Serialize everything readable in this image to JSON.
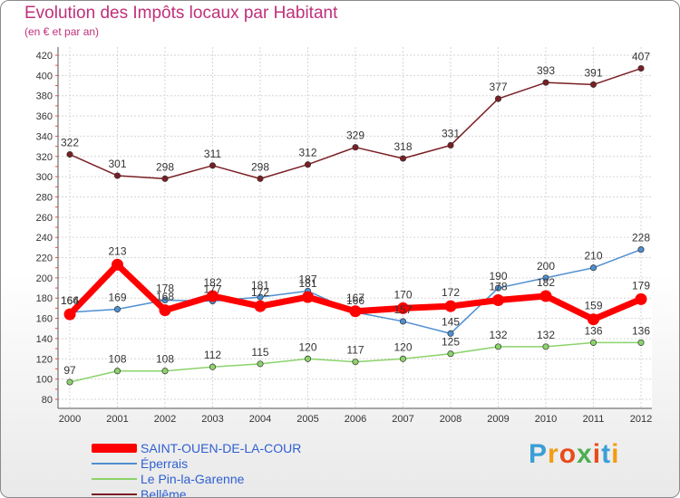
{
  "chart_data": {
    "type": "line",
    "title": "Evolution des Impôts locaux par Habitant",
    "subtitle": "(en € et par an)",
    "x": [
      "2000",
      "2001",
      "2002",
      "2003",
      "2004",
      "2005",
      "2006",
      "2007",
      "2008",
      "2009",
      "2010",
      "2011",
      "2012"
    ],
    "yticks": [
      80,
      100,
      120,
      140,
      160,
      180,
      200,
      220,
      240,
      260,
      280,
      300,
      320,
      340,
      360,
      380,
      400,
      420
    ],
    "ylim": [
      80,
      420
    ],
    "grid": true,
    "legend_position": "bottom-left",
    "series": [
      {
        "name": "SAINT-OUEN-DE-LA-COUR",
        "color": "#ff0000",
        "values": [
          164,
          213,
          168,
          182,
          172,
          181,
          167,
          170,
          172,
          178,
          182,
          159,
          179
        ]
      },
      {
        "name": "Éperrais",
        "color": "#4f8fd0",
        "values": [
          166,
          169,
          178,
          177,
          181,
          187,
          166,
          157,
          145,
          190,
          200,
          210,
          228
        ]
      },
      {
        "name": "Le Pin-la-Garenne",
        "color": "#8bd36b",
        "values": [
          97,
          108,
          108,
          112,
          115,
          120,
          117,
          120,
          125,
          132,
          132,
          136,
          136
        ]
      },
      {
        "name": "Bellême",
        "color": "#7a1e24",
        "values": [
          322,
          301,
          298,
          311,
          298,
          312,
          329,
          318,
          331,
          377,
          393,
          391,
          407
        ]
      }
    ],
    "point_labels": [
      [
        "164",
        "213",
        "168",
        "182",
        "172",
        "181",
        "167",
        "170",
        "172",
        "178",
        "182",
        "159",
        "179"
      ],
      [
        "166",
        "169",
        "178",
        "177",
        "181",
        "187",
        "166",
        "157",
        "145",
        "190",
        "200",
        "210",
        "228"
      ],
      [
        "97",
        "108",
        "108",
        "112",
        "115",
        "120",
        "117",
        "120",
        "125",
        "132",
        "132",
        "136",
        "136"
      ],
      [
        "322",
        "301",
        "298",
        "311",
        "298",
        "312",
        "329",
        "318",
        "331",
        "377",
        "393",
        "391",
        "407"
      ]
    ]
  },
  "logo": {
    "letters": [
      "P",
      "r",
      "o",
      "x",
      "i",
      "t",
      "i"
    ],
    "text": "Proxiti"
  }
}
